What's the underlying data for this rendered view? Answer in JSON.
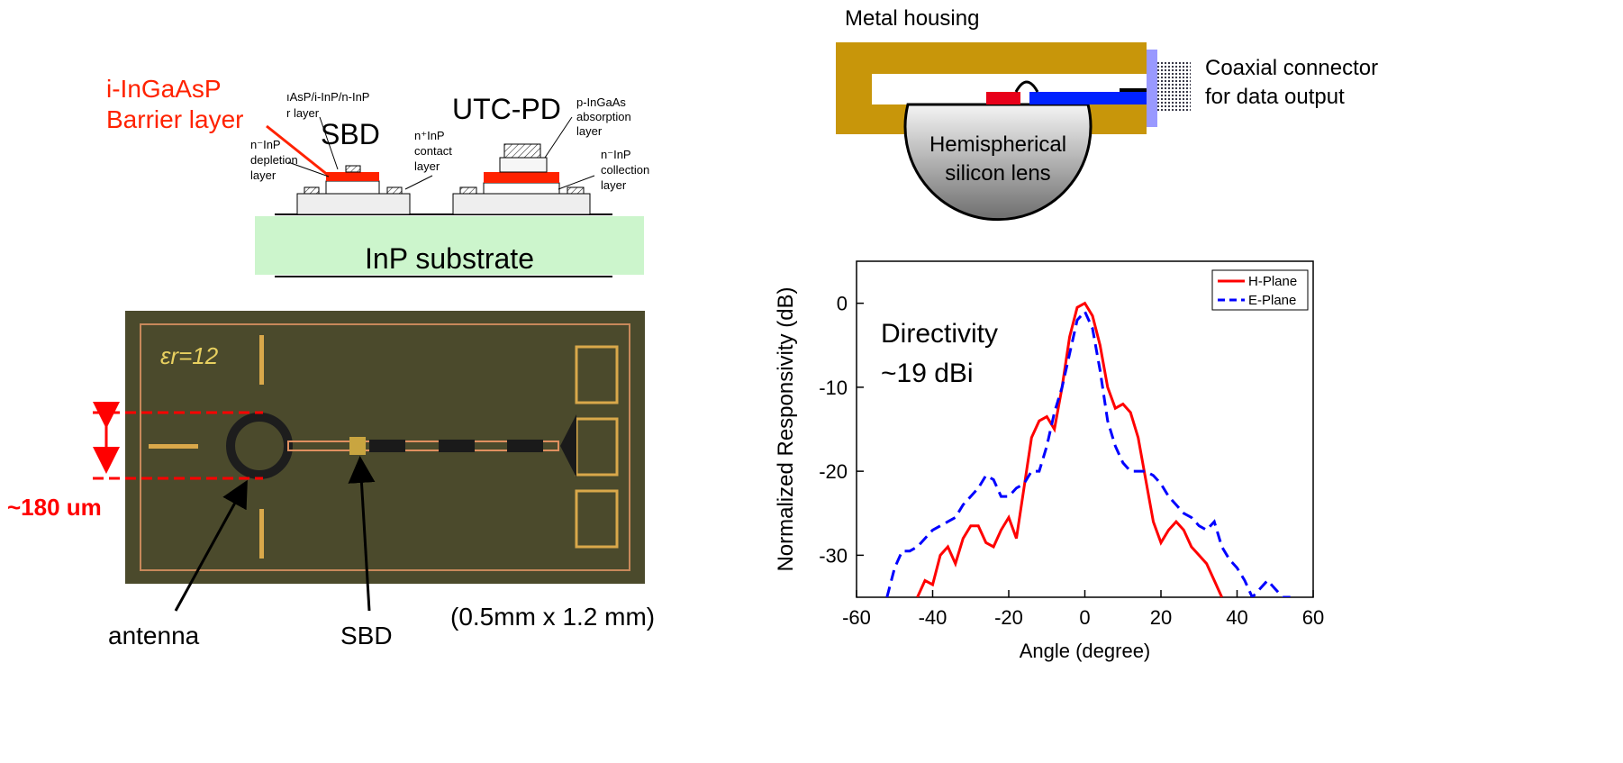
{
  "layer_diagram": {
    "barrier_label": [
      "i-InGaAsP",
      "Barrier layer"
    ],
    "sbd_label": "SBD",
    "utc_label": "UTC-PD",
    "sbd_layers": [
      "ıAsP/i-InP/n-InP",
      "r layer"
    ],
    "depletion": [
      "n⁻InP",
      "depletion",
      "layer"
    ],
    "contact": [
      "n⁺InP",
      "contact",
      "layer"
    ],
    "absorption": [
      "p-InGaAs",
      "absorption",
      "layer"
    ],
    "collection": [
      "n⁻InP",
      "collection",
      "layer"
    ],
    "substrate": "InP substrate"
  },
  "photo": {
    "permittivity": "εr=12",
    "size_label": "~180 um",
    "antenna_label": "antenna",
    "sbd_label": "SBD",
    "dimensions": "(0.5mm x 1.2 mm)"
  },
  "housing_diagram": {
    "housing_label": "Metal housing",
    "connector_label": [
      "Coaxial connector",
      "for data output"
    ],
    "lens_label": [
      "Hemispherical",
      "silicon lens"
    ]
  },
  "chart_data": {
    "type": "line",
    "x_label": "Angle (degree)",
    "y_label": "Normalized Responsivity (dB)",
    "annotation": [
      "Directivity",
      "~19 dBi"
    ],
    "xlim": [
      -60,
      60
    ],
    "xticks": [
      -60,
      -40,
      -20,
      0,
      20,
      40,
      60
    ],
    "ylim": [
      -35,
      5
    ],
    "yticks": [
      -30,
      -20,
      -10,
      0
    ],
    "legend": "upper right",
    "series": [
      {
        "name": "H-Plane",
        "color": "#ff0000",
        "line_style": "solid",
        "x": [
          -44,
          -42,
          -40,
          -38,
          -36,
          -34,
          -32,
          -30,
          -28,
          -26,
          -24,
          -22,
          -20,
          -18,
          -16,
          -14,
          -12,
          -10,
          -8,
          -6,
          -4,
          -2,
          0,
          2,
          4,
          6,
          8,
          10,
          12,
          14,
          16,
          18,
          20,
          22,
          24,
          26,
          28,
          30,
          32,
          34,
          36
        ],
        "values": [
          -35,
          -33,
          -33.5,
          -30,
          -29,
          -31,
          -28,
          -26.5,
          -26.5,
          -28.5,
          -29,
          -27,
          -25.5,
          -28,
          -22,
          -16,
          -14,
          -13.5,
          -15,
          -10,
          -4,
          -0.5,
          0,
          -1.5,
          -5,
          -10,
          -12.5,
          -12,
          -13,
          -16,
          -21,
          -26,
          -28.5,
          -27,
          -26,
          -27,
          -29,
          -30,
          -31,
          -33,
          -35
        ]
      },
      {
        "name": "E-Plane",
        "color": "#0000ff",
        "line_style": "dashed",
        "x": [
          -52,
          -50,
          -48,
          -46,
          -44,
          -42,
          -40,
          -38,
          -36,
          -34,
          -32,
          -30,
          -28,
          -26,
          -24,
          -22,
          -20,
          -18,
          -16,
          -14,
          -12,
          -10,
          -8,
          -6,
          -4,
          -2,
          0,
          2,
          4,
          6,
          8,
          10,
          12,
          14,
          16,
          18,
          20,
          22,
          24,
          26,
          28,
          30,
          32,
          34,
          36,
          38,
          40,
          42,
          44,
          46,
          48,
          50,
          52,
          54
        ],
        "values": [
          -35,
          -31.5,
          -29.5,
          -29.5,
          -29,
          -28,
          -27,
          -26.5,
          -26,
          -25.5,
          -24,
          -23,
          -22,
          -20.5,
          -21,
          -23,
          -23,
          -22,
          -21.5,
          -20,
          -20,
          -17,
          -13,
          -10,
          -6,
          -2,
          -1,
          -3,
          -8,
          -14,
          -17,
          -19,
          -20,
          -20,
          -20,
          -20.5,
          -21.5,
          -23,
          -24,
          -25,
          -25.5,
          -26.5,
          -27,
          -26,
          -29,
          -30.5,
          -31.5,
          -33,
          -35,
          -34,
          -33,
          -34,
          -35,
          -35
        ]
      }
    ]
  }
}
